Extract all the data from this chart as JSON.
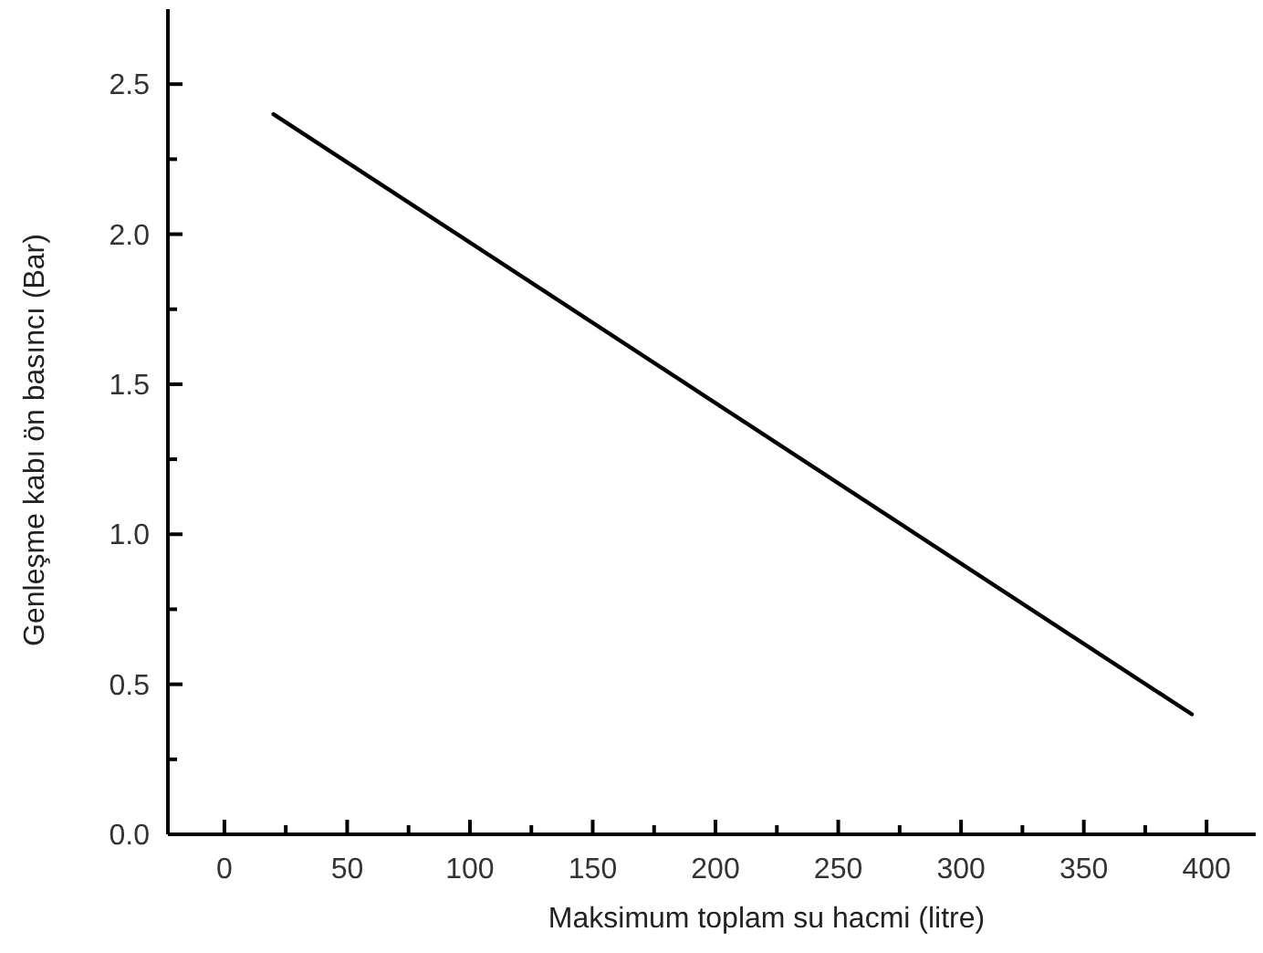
{
  "chart_data": {
    "type": "line",
    "xlabel": "Maksimum toplam su hacmi (litre)",
    "ylabel": "Genleşme kabı ön basıncı (Bar)",
    "xlim": [
      -23,
      420
    ],
    "ylim": [
      0,
      2.75
    ],
    "xticks": [
      0,
      {
        "value": 25,
        "label": null
      },
      50,
      {
        "value": 75,
        "label": null
      },
      100,
      {
        "value": 125,
        "label": null
      },
      150,
      {
        "value": 175,
        "label": null
      },
      200,
      {
        "value": 225,
        "label": null
      },
      250,
      {
        "value": 275,
        "label": null
      },
      300,
      {
        "value": 325,
        "label": null
      },
      350,
      {
        "value": 375,
        "label": null
      },
      400
    ],
    "yticks": [
      {
        "value": 0,
        "label": "0.0"
      },
      {
        "value": 0.25,
        "label": null
      },
      0.5,
      {
        "value": 0.75,
        "label": null
      },
      {
        "value": 1,
        "label": "1.0"
      },
      {
        "value": 1.25,
        "label": null
      },
      1.5,
      {
        "value": 1.75,
        "label": null
      },
      {
        "value": 2,
        "label": "2.0"
      },
      {
        "value": 2.25,
        "label": null
      },
      2.5
    ],
    "grid": false,
    "marker": "none",
    "line_style": "solid",
    "series": [
      {
        "color": "#000000",
        "x": [
          20,
          394
        ],
        "values": [
          2.4,
          0.4
        ]
      }
    ]
  }
}
